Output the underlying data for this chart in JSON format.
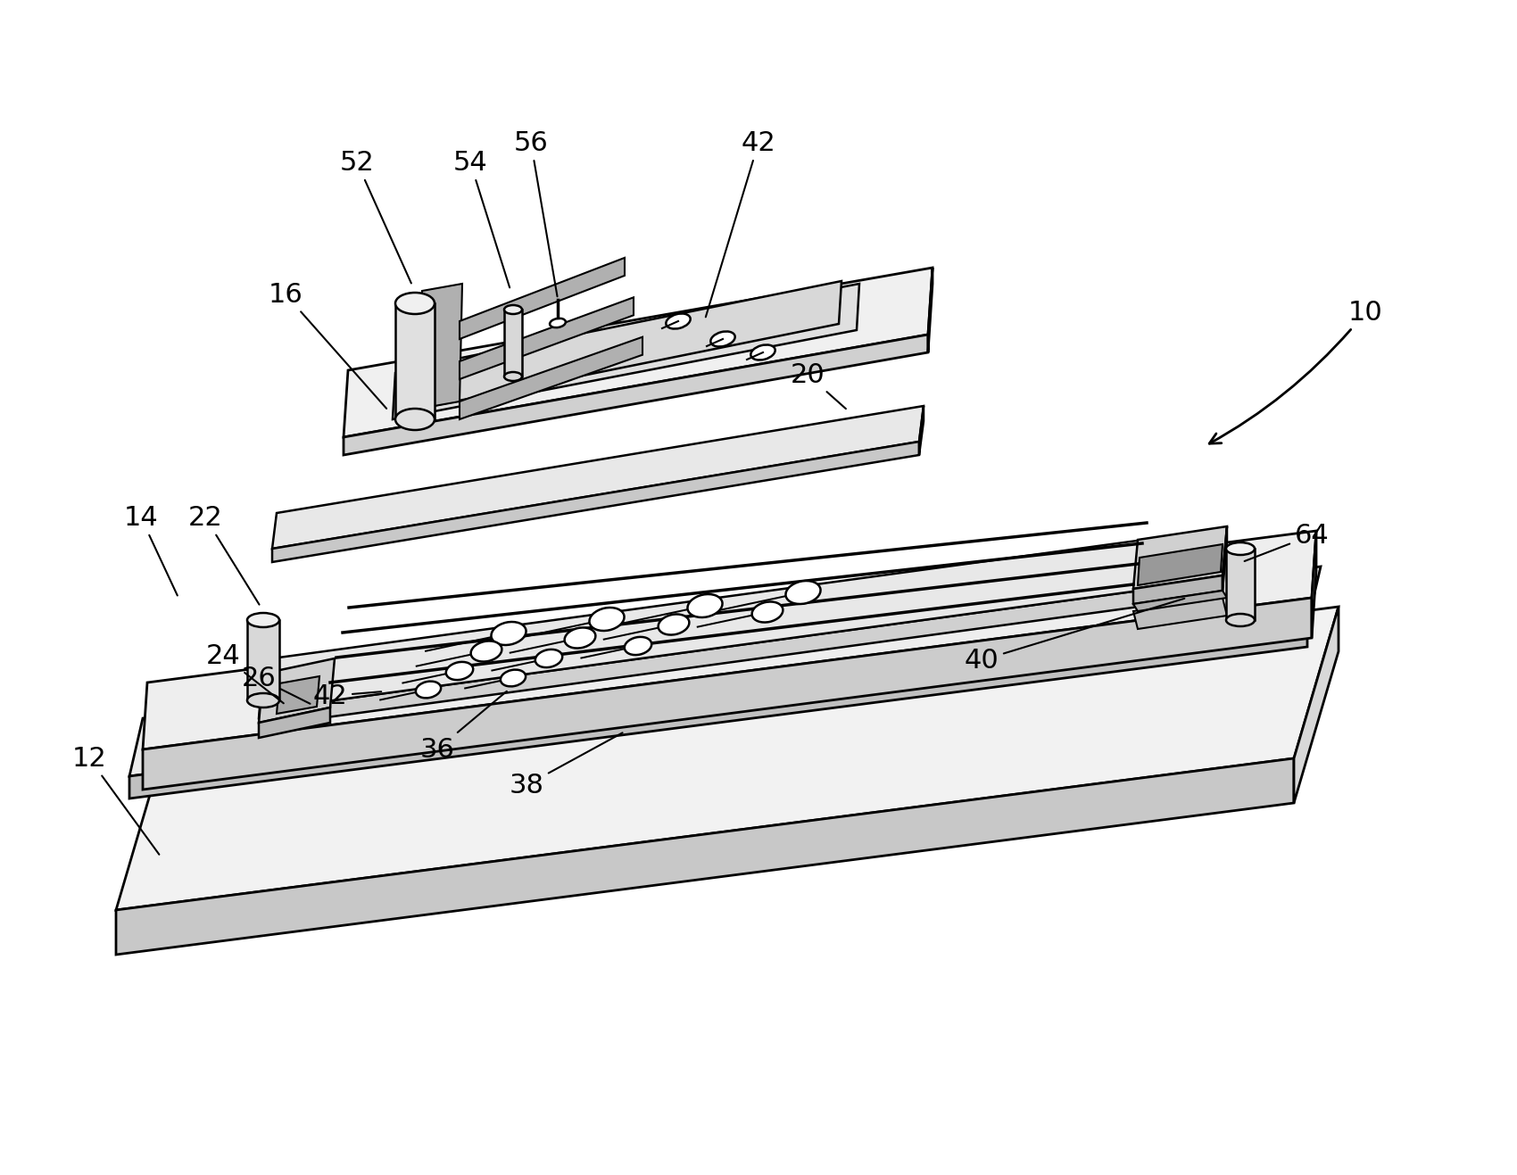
{
  "background_color": "#ffffff",
  "lc": "#000000",
  "figsize": [
    17.0,
    13.17
  ],
  "dpi": 100,
  "fs": 22
}
